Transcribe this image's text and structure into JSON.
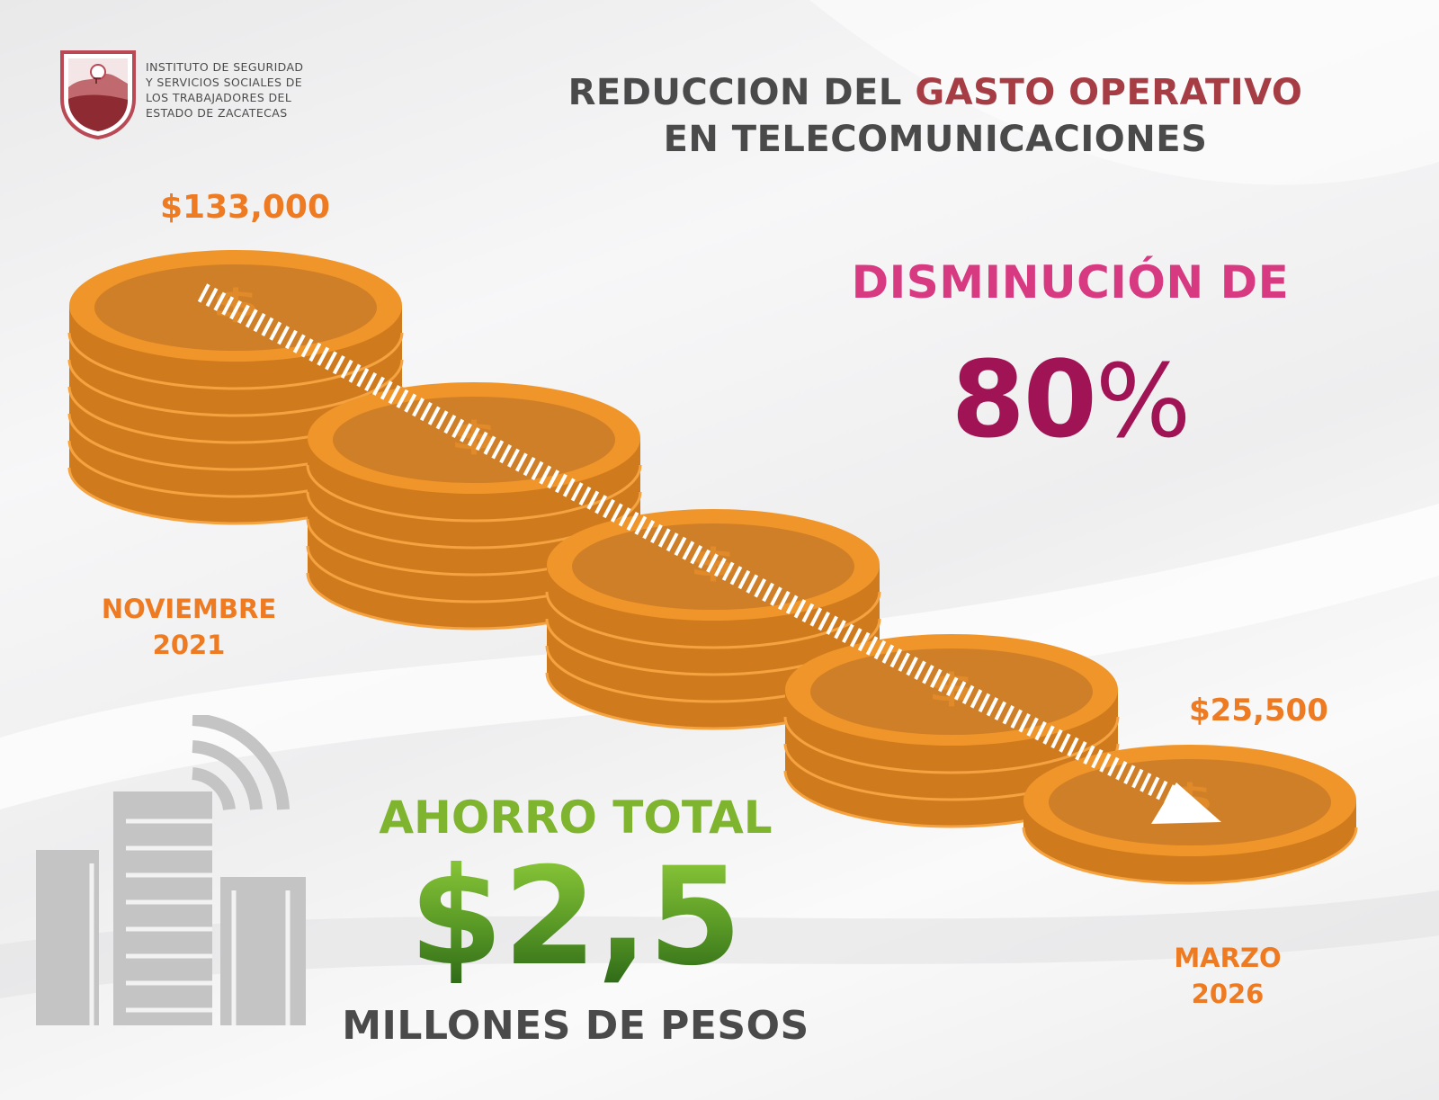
{
  "institution": {
    "lines": [
      "INSTITUTO DE SEGURIDAD",
      "Y SERVICIOS SOCIALES DE",
      "LOS TRABAJADORES DEL",
      "ESTADO DE ZACATECAS"
    ],
    "logo_icon": "shield-logo-icon"
  },
  "title": {
    "prefix": "REDUCCION DEL ",
    "accent": "GASTO OPERATIVO",
    "line2": "EN TELECOMUNICACIONES"
  },
  "start": {
    "amount": "$133,000",
    "month": "NOVIEMBRE",
    "year": "2021"
  },
  "end": {
    "amount": "$25,500",
    "month": "MARZO",
    "year": "2026"
  },
  "reduction": {
    "label": "DISMINUCIÓN DE",
    "value": "80",
    "percent_sign": "%"
  },
  "savings": {
    "label": "AHORRO TOTAL",
    "value": "$2,5",
    "unit": "MILLONES DE PESOS"
  },
  "coin_stacks": {
    "counts": [
      6,
      5,
      4,
      3,
      1
    ],
    "icon": "dollar-coin-icon",
    "trend_icon": "down-trend-arrow-icon"
  },
  "decor": {
    "building_icon": "building-signal-icon"
  },
  "colors": {
    "orange": "#ee7a22",
    "coin": "#f0952a",
    "magenta": "#d83a82",
    "wine": "#a01354",
    "green": "#7fb42e",
    "maroon": "#a73d44",
    "gray": "#4a4a4a"
  }
}
